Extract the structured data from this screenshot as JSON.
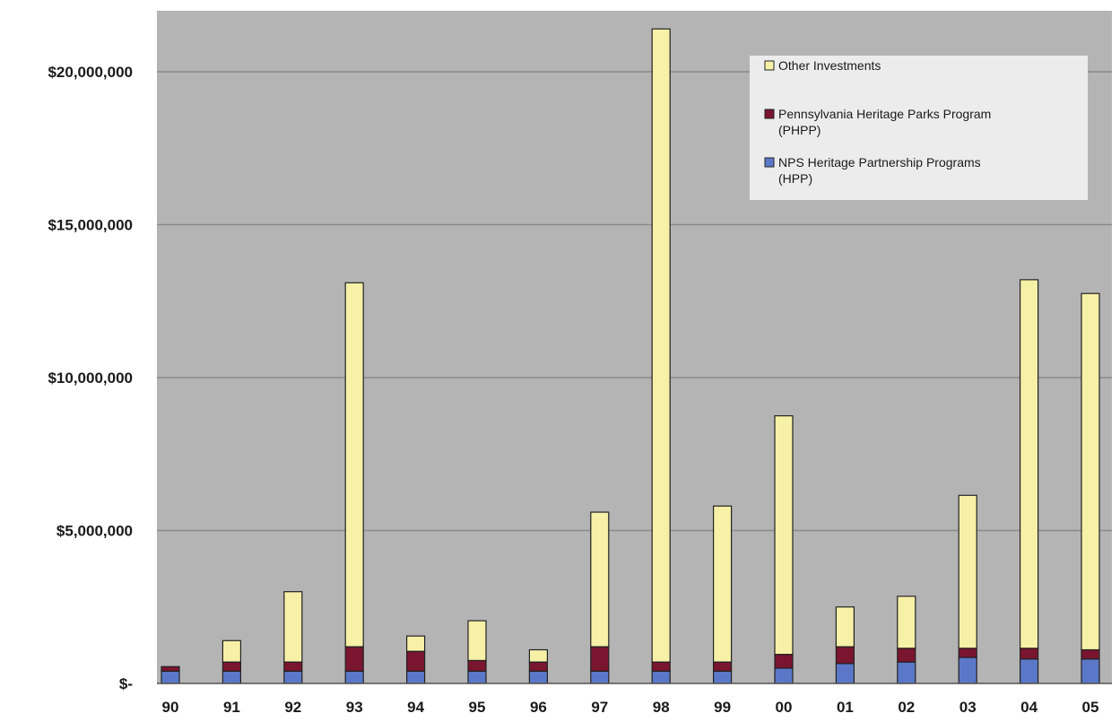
{
  "chart_data": {
    "type": "bar",
    "stacked": true,
    "categories": [
      "90",
      "91",
      "92",
      "93",
      "94",
      "95",
      "96",
      "97",
      "98",
      "99",
      "00",
      "01",
      "02",
      "03",
      "04",
      "05"
    ],
    "series": [
      {
        "name": "NPS Heritage Partnership Programs (HPP)",
        "legend_lines": [
          "NPS Heritage Partnership Programs",
          "(HPP)"
        ],
        "color": "#5b78c8",
        "values": [
          400000,
          400000,
          400000,
          400000,
          400000,
          400000,
          400000,
          400000,
          400000,
          400000,
          500000,
          650000,
          700000,
          850000,
          800000,
          800000
        ]
      },
      {
        "name": "Pennsylvania Heritage Parks Program (PHPP)",
        "legend_lines": [
          "Pennsylvania Heritage Parks Program",
          "(PHPP)"
        ],
        "color": "#7a1530",
        "values": [
          150000,
          300000,
          300000,
          800000,
          650000,
          350000,
          300000,
          800000,
          300000,
          300000,
          450000,
          550000,
          450000,
          300000,
          350000,
          300000
        ]
      },
      {
        "name": "Other Investments",
        "legend_lines": [
          "Other Investments"
        ],
        "color": "#f7f1a8",
        "values": [
          0,
          700000,
          2300000,
          11900000,
          500000,
          1300000,
          400000,
          4400000,
          20700000,
          5100000,
          7800000,
          1300000,
          1700000,
          5000000,
          12050000,
          11650000
        ]
      }
    ],
    "yticks": [
      {
        "value": 0,
        "label": "$-"
      },
      {
        "value": 5000000,
        "label": "$5,000,000"
      },
      {
        "value": 10000000,
        "label": "$10,000,000"
      },
      {
        "value": 15000000,
        "label": "$15,000,000"
      },
      {
        "value": 20000000,
        "label": "$20,000,000"
      }
    ],
    "ylim": [
      0,
      22000000
    ],
    "grid": true,
    "legend_position": "top-right",
    "title": "",
    "xlabel": "",
    "ylabel": "",
    "colors": {
      "plot_background": "#b4b4b4",
      "gridline": "#8a8a8a",
      "legend_background": "#ececec",
      "bar_outline": "#222222"
    }
  }
}
